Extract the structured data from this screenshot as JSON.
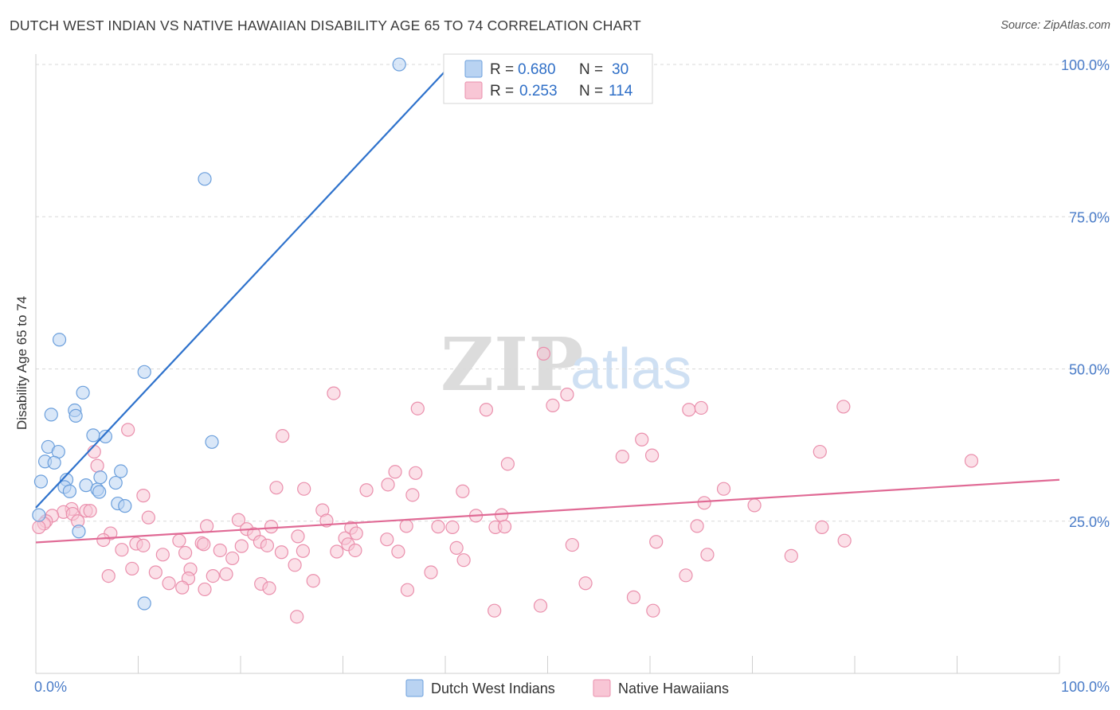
{
  "header": {
    "title": "DUTCH WEST INDIAN VS NATIVE HAWAIIAN DISABILITY AGE 65 TO 74 CORRELATION CHART",
    "source": "Source: ZipAtlas.com"
  },
  "watermark": {
    "zip": "ZIP",
    "atlas": "atlas"
  },
  "colors": {
    "blue_fill": "#b9d3f2",
    "blue_stroke": "#6b9fdc",
    "blue_line": "#2e72cc",
    "pink_fill": "#f8c6d5",
    "pink_stroke": "#ea8fac",
    "pink_line": "#e06a95",
    "grid": "#d9d9d9",
    "tick_text": "#4a7cc8"
  },
  "legend": {
    "rows": [
      {
        "r_label": "R = ",
        "r_value": "0.680",
        "n_label": "N = ",
        "n_value": "30"
      },
      {
        "r_label": "R = ",
        "r_value": "0.253",
        "n_label": "N = ",
        "n_value": "114"
      }
    ]
  },
  "chart_data": {
    "type": "scatter",
    "title": "DUTCH WEST INDIAN VS NATIVE HAWAIIAN DISABILITY AGE 65 TO 74 CORRELATION CHART",
    "xlabel": "",
    "ylabel": "Disability Age 65 to 74",
    "xlim": [
      0,
      100
    ],
    "ylim": [
      0,
      102
    ],
    "x_tick_labels": [
      "0.0%",
      "100.0%"
    ],
    "y_tick_labels": [
      "25.0%",
      "50.0%",
      "75.0%",
      "100.0%"
    ],
    "y_ticks": [
      25,
      50,
      75,
      100
    ],
    "grid": true,
    "legend_position": "top-center",
    "series": [
      {
        "name": "Dutch West Indians",
        "color": "blue",
        "regression": {
          "r": 0.68,
          "n": 30,
          "x0": 0,
          "y0": 27.2,
          "x1": 40.6,
          "y1": 100
        },
        "points": [
          [
            35.5,
            100.0
          ],
          [
            16.5,
            81.2
          ],
          [
            2.3,
            54.8
          ],
          [
            10.6,
            49.5
          ],
          [
            4.6,
            46.1
          ],
          [
            1.5,
            42.5
          ],
          [
            3.8,
            43.2
          ],
          [
            3.9,
            42.3
          ],
          [
            5.6,
            39.1
          ],
          [
            6.8,
            38.9
          ],
          [
            17.2,
            38.0
          ],
          [
            1.2,
            37.2
          ],
          [
            2.2,
            36.4
          ],
          [
            0.9,
            34.8
          ],
          [
            1.8,
            34.6
          ],
          [
            8.3,
            33.2
          ],
          [
            0.5,
            31.5
          ],
          [
            3.0,
            31.8
          ],
          [
            6.3,
            32.2
          ],
          [
            7.8,
            31.3
          ],
          [
            4.9,
            30.9
          ],
          [
            2.8,
            30.6
          ],
          [
            6.0,
            30.2
          ],
          [
            3.3,
            29.9
          ],
          [
            6.2,
            29.8
          ],
          [
            8.0,
            27.9
          ],
          [
            8.7,
            27.5
          ],
          [
            0.3,
            26.0
          ],
          [
            4.2,
            23.3
          ],
          [
            10.6,
            11.5
          ]
        ]
      },
      {
        "name": "Native Hawaiians",
        "color": "pink",
        "regression": {
          "r": 0.253,
          "n": 114,
          "x0": 0,
          "y0": 21.5,
          "x1": 100,
          "y1": 31.8
        },
        "points": [
          [
            49.6,
            52.5
          ],
          [
            29.1,
            46.0
          ],
          [
            51.9,
            45.8
          ],
          [
            50.5,
            44.0
          ],
          [
            37.3,
            43.5
          ],
          [
            44.0,
            43.3
          ],
          [
            63.8,
            43.3
          ],
          [
            65.0,
            43.6
          ],
          [
            78.9,
            43.8
          ],
          [
            9.0,
            40.0
          ],
          [
            24.1,
            39.0
          ],
          [
            59.2,
            38.4
          ],
          [
            91.4,
            34.9
          ],
          [
            57.3,
            35.6
          ],
          [
            60.2,
            35.8
          ],
          [
            76.6,
            36.4
          ],
          [
            46.1,
            34.4
          ],
          [
            35.1,
            33.1
          ],
          [
            37.1,
            32.9
          ],
          [
            6.0,
            34.1
          ],
          [
            5.7,
            36.4
          ],
          [
            34.4,
            31.0
          ],
          [
            23.5,
            30.5
          ],
          [
            26.2,
            30.3
          ],
          [
            32.3,
            30.1
          ],
          [
            41.7,
            29.9
          ],
          [
            67.2,
            30.3
          ],
          [
            36.8,
            29.3
          ],
          [
            10.5,
            29.2
          ],
          [
            65.3,
            28.0
          ],
          [
            70.2,
            27.6
          ],
          [
            3.5,
            27.0
          ],
          [
            2.7,
            26.5
          ],
          [
            4.9,
            26.7
          ],
          [
            28.0,
            26.8
          ],
          [
            1.6,
            25.9
          ],
          [
            1.0,
            25.0
          ],
          [
            0.8,
            24.6
          ],
          [
            3.6,
            26.2
          ],
          [
            5.3,
            26.7
          ],
          [
            11.0,
            25.6
          ],
          [
            43.0,
            25.9
          ],
          [
            45.5,
            26.0
          ],
          [
            28.4,
            25.1
          ],
          [
            19.8,
            25.2
          ],
          [
            4.1,
            25.0
          ],
          [
            0.3,
            24.0
          ],
          [
            16.7,
            24.2
          ],
          [
            20.6,
            23.7
          ],
          [
            23.0,
            24.1
          ],
          [
            30.8,
            23.9
          ],
          [
            36.2,
            24.2
          ],
          [
            39.3,
            24.1
          ],
          [
            40.7,
            24.0
          ],
          [
            44.9,
            24.0
          ],
          [
            45.8,
            24.1
          ],
          [
            64.6,
            24.2
          ],
          [
            76.8,
            24.0
          ],
          [
            7.3,
            23.0
          ],
          [
            21.3,
            22.9
          ],
          [
            25.6,
            22.5
          ],
          [
            30.2,
            22.2
          ],
          [
            31.3,
            23.0
          ],
          [
            34.3,
            22.0
          ],
          [
            14.0,
            21.8
          ],
          [
            16.2,
            21.4
          ],
          [
            21.9,
            21.6
          ],
          [
            30.5,
            21.2
          ],
          [
            6.6,
            21.9
          ],
          [
            9.8,
            21.3
          ],
          [
            22.6,
            21.0
          ],
          [
            52.4,
            21.1
          ],
          [
            10.5,
            21.0
          ],
          [
            16.4,
            21.2
          ],
          [
            20.1,
            20.9
          ],
          [
            60.6,
            21.6
          ],
          [
            79.0,
            21.8
          ],
          [
            8.4,
            20.3
          ],
          [
            18.0,
            20.2
          ],
          [
            24.0,
            19.9
          ],
          [
            26.1,
            20.1
          ],
          [
            29.4,
            20.0
          ],
          [
            31.2,
            20.2
          ],
          [
            35.4,
            20.0
          ],
          [
            41.1,
            20.6
          ],
          [
            12.4,
            19.5
          ],
          [
            14.6,
            19.8
          ],
          [
            19.2,
            18.9
          ],
          [
            41.8,
            18.6
          ],
          [
            65.6,
            19.5
          ],
          [
            73.8,
            19.3
          ],
          [
            25.3,
            17.8
          ],
          [
            9.4,
            17.2
          ],
          [
            15.1,
            17.1
          ],
          [
            11.7,
            16.6
          ],
          [
            18.6,
            16.3
          ],
          [
            17.3,
            16.0
          ],
          [
            7.1,
            16.0
          ],
          [
            38.6,
            16.6
          ],
          [
            14.9,
            15.6
          ],
          [
            27.1,
            15.2
          ],
          [
            13.0,
            14.8
          ],
          [
            22.0,
            14.7
          ],
          [
            14.3,
            14.1
          ],
          [
            22.8,
            14.0
          ],
          [
            36.3,
            13.7
          ],
          [
            53.7,
            14.8
          ],
          [
            49.3,
            11.1
          ],
          [
            58.4,
            12.5
          ],
          [
            16.5,
            13.8
          ],
          [
            63.5,
            16.1
          ],
          [
            60.3,
            10.3
          ],
          [
            25.5,
            9.3
          ],
          [
            44.8,
            10.3
          ]
        ]
      }
    ]
  },
  "bottom_legend": [
    {
      "label": "Dutch West Indians",
      "color": "blue"
    },
    {
      "label": "Native Hawaiians",
      "color": "pink"
    }
  ]
}
